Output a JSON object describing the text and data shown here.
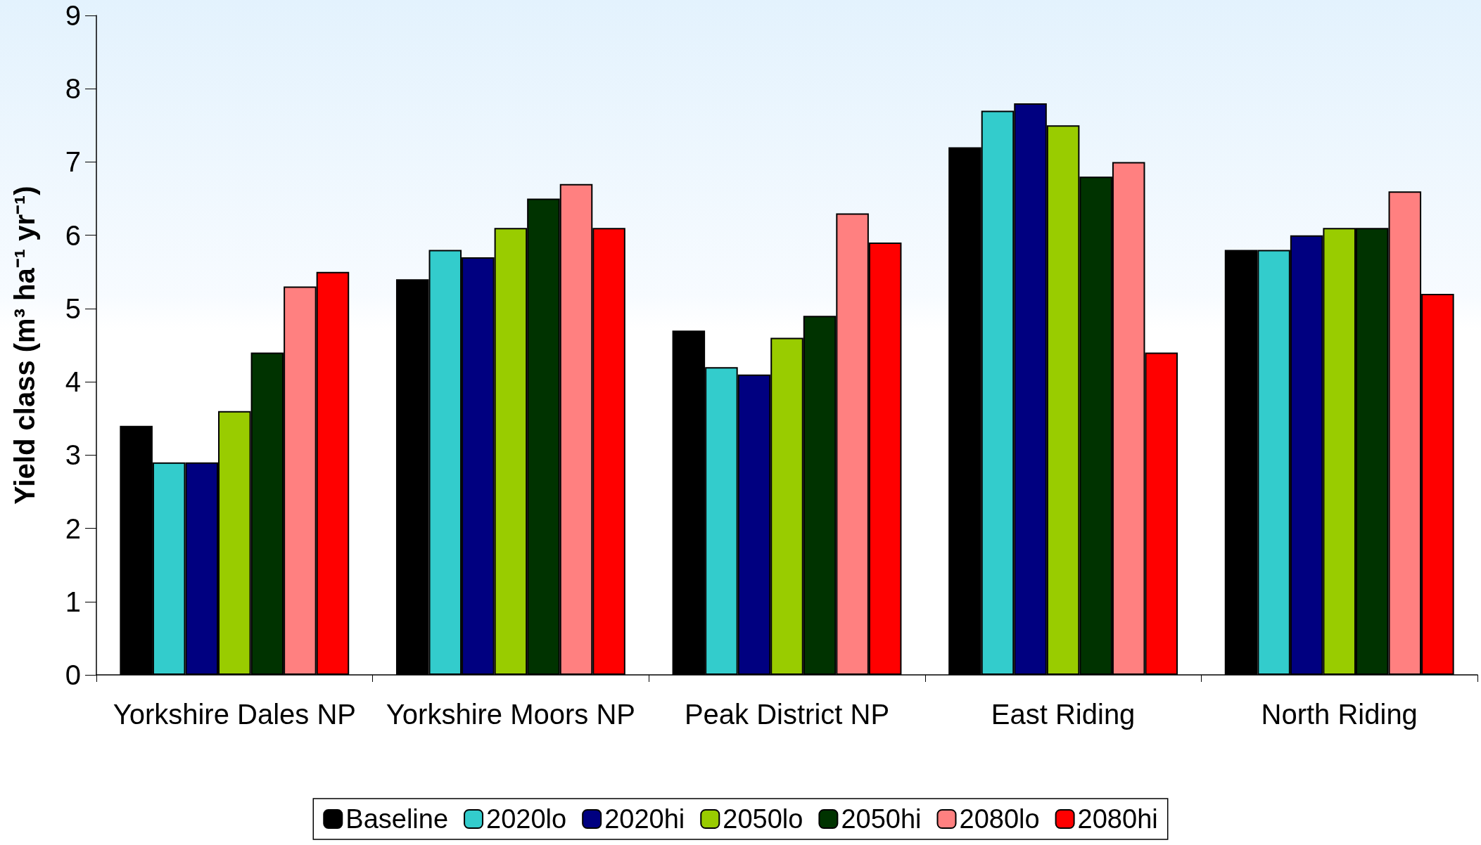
{
  "chart_data": {
    "type": "bar",
    "ylabel": "Yield class (m³ ha⁻¹ yr⁻¹)",
    "categories": [
      "Yorkshire Dales NP",
      "Yorkshire Moors NP",
      "Peak District NP",
      "East Riding",
      "North Riding"
    ],
    "series": [
      {
        "name": "Baseline",
        "color": "#000000",
        "values": [
          3.4,
          5.4,
          4.7,
          7.2,
          5.8
        ]
      },
      {
        "name": "2020lo",
        "color": "#33cccc",
        "values": [
          2.9,
          5.8,
          4.2,
          7.7,
          5.8
        ]
      },
      {
        "name": "2020hi",
        "color": "#000080",
        "values": [
          2.9,
          5.7,
          4.1,
          7.8,
          6.0
        ]
      },
      {
        "name": "2050lo",
        "color": "#99cc00",
        "values": [
          3.6,
          6.1,
          4.6,
          7.5,
          6.1
        ]
      },
      {
        "name": "2050hi",
        "color": "#003300",
        "values": [
          4.4,
          6.5,
          4.9,
          6.8,
          6.1
        ]
      },
      {
        "name": "2080lo",
        "color": "#ff8080",
        "values": [
          5.3,
          6.7,
          6.3,
          7.0,
          6.6
        ]
      },
      {
        "name": "2080hi",
        "color": "#ff0000",
        "values": [
          5.5,
          6.1,
          5.9,
          4.4,
          5.2
        ]
      }
    ],
    "ylim": [
      0,
      9
    ],
    "yticks": [
      0,
      1,
      2,
      3,
      4,
      5,
      6,
      7,
      8,
      9
    ],
    "grid": false,
    "legend": "bottom"
  }
}
